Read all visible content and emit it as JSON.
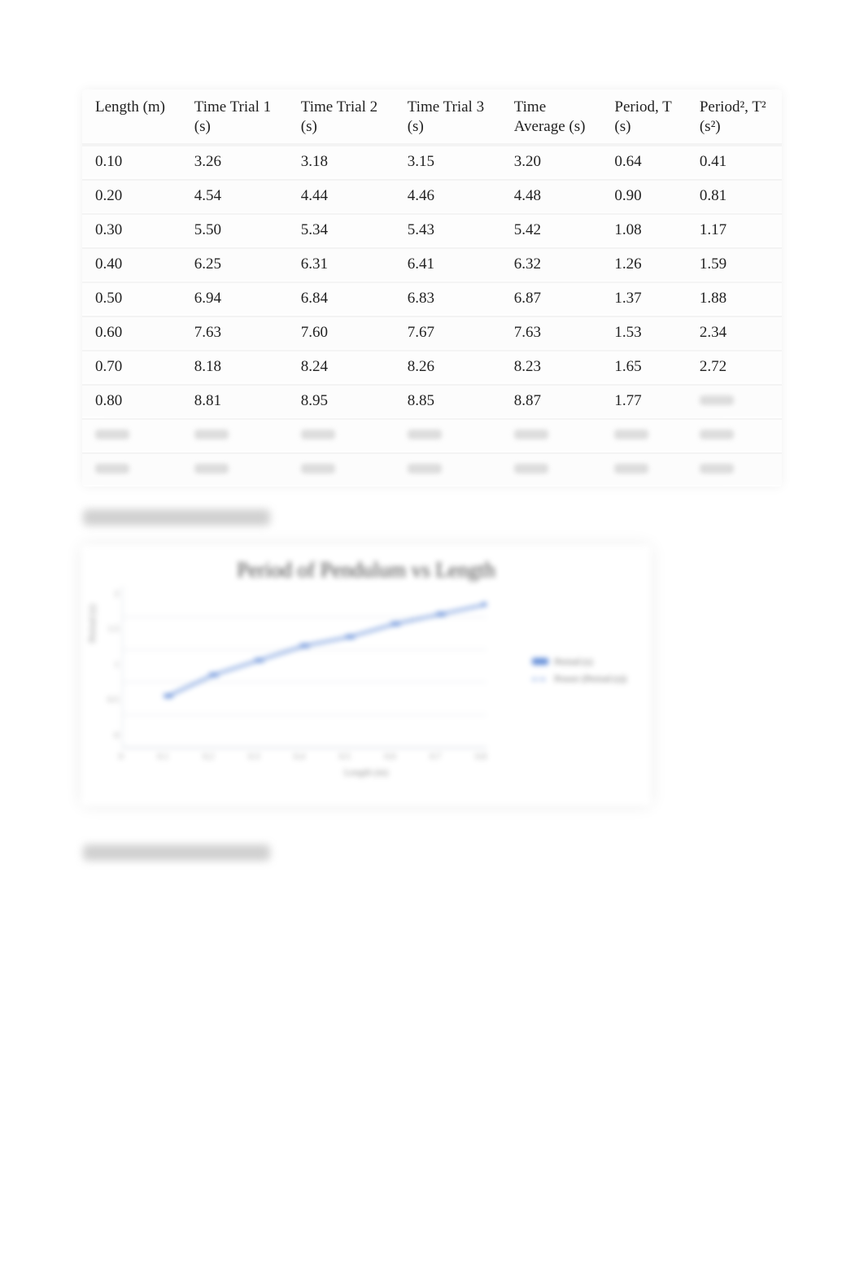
{
  "table": {
    "columns": [
      "Length (m)",
      "Time Trial 1\n(s)",
      "Time Trial 2\n(s)",
      "Time Trial 3\n(s)",
      "Time\nAverage (s)",
      "Period, T\n(s)",
      "Period², T²\n(s²)"
    ],
    "col_widths_pct": [
      12,
      14,
      14,
      14,
      14,
      13,
      13
    ],
    "header_fontsize": 19,
    "cell_fontsize": 19,
    "rows": [
      [
        "0.10",
        "3.26",
        "3.18",
        "3.15",
        "3.20",
        "0.64",
        "0.41"
      ],
      [
        "0.20",
        "4.54",
        "4.44",
        "4.46",
        "4.48",
        "0.90",
        "0.81"
      ],
      [
        "0.30",
        "5.50",
        "5.34",
        "5.43",
        "5.42",
        "1.08",
        "1.17"
      ],
      [
        "0.40",
        "6.25",
        "6.31",
        "6.41",
        "6.32",
        "1.26",
        "1.59"
      ],
      [
        "0.50",
        "6.94",
        "6.84",
        "6.83",
        "6.87",
        "1.37",
        "1.88"
      ],
      [
        "0.60",
        "7.63",
        "7.60",
        "7.67",
        "7.63",
        "1.53",
        "2.34"
      ],
      [
        "0.70",
        "8.18",
        "8.24",
        "8.26",
        "8.23",
        "1.65",
        "2.72"
      ],
      [
        "0.80",
        "8.81",
        "8.95",
        "8.85",
        "8.87",
        "1.77",
        ""
      ]
    ],
    "blurred_rows": 2,
    "column_alignment": [
      "left",
      "left",
      "left",
      "left",
      "left",
      "left",
      "left"
    ]
  },
  "caption1": "Graph of Period vs. Length",
  "caption2": "Graph of Period² vs Length",
  "chart": {
    "type": "line",
    "title": "Period of Pendulum vs Length",
    "title_fontsize": 26,
    "title_color": "#444444",
    "xlabel": "Length (m)",
    "ylabel": "Period (s)",
    "label_fontsize": 12,
    "label_color": "#888888",
    "background_color": "#ffffff",
    "grid_color": "#d7dbe3",
    "line_color": "#5b87d6",
    "marker_color": "#5b87d6",
    "marker_style": "square",
    "marker_size": 7,
    "line_width": 2.5,
    "x_values": [
      0.1,
      0.2,
      0.3,
      0.4,
      0.5,
      0.6,
      0.7,
      0.8
    ],
    "y_values": [
      0.64,
      0.9,
      1.08,
      1.26,
      1.37,
      1.53,
      1.65,
      1.77
    ],
    "x_ticks": [
      "0",
      "0.1",
      "0.2",
      "0.3",
      "0.4",
      "0.5",
      "0.6",
      "0.7",
      "0.8"
    ],
    "y_ticks": [
      "0",
      "0.5",
      "1",
      "1.5",
      "2"
    ],
    "xlim": [
      0,
      0.8
    ],
    "ylim": [
      0,
      2
    ],
    "legend": {
      "position": "right",
      "items": [
        {
          "label": "Period (s)",
          "style": "marker"
        },
        {
          "label": "Power (Period (s))",
          "style": "dash"
        }
      ]
    }
  }
}
